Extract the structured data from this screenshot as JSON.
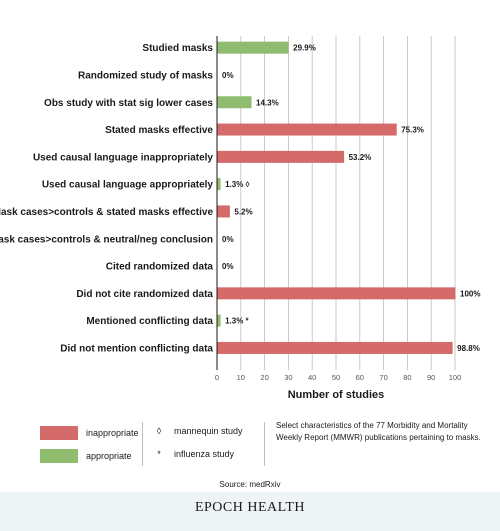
{
  "chart_data": {
    "type": "bar",
    "orientation": "horizontal",
    "categories": [
      "Studied masks",
      "Randomized study of masks",
      "Obs study with stat sig lower cases",
      "Stated masks effective",
      "Used causal language inappropriately",
      "Used causal language appropriately",
      "Mask cases>controls & stated masks effective",
      "Mask cases>controls & neutral/neg conclusion",
      "Cited randomized data",
      "Did not cite randomized data",
      "Mentioned conflicting data",
      "Did not mention conflicting data"
    ],
    "values": [
      29.9,
      0,
      14.3,
      75.3,
      53.2,
      1.3,
      5.2,
      0,
      0,
      100,
      1.3,
      98.8
    ],
    "value_labels": [
      "29.9%",
      "0%",
      "14.3%",
      "75.3%",
      "53.2%",
      "1.3%",
      "5.2%",
      "0%",
      "0%",
      "100%",
      "1.3%",
      "98.8%"
    ],
    "label_markers": [
      "",
      "",
      "",
      "",
      "",
      "◊",
      "",
      "",
      "",
      "",
      "*",
      ""
    ],
    "bar_classes": [
      "appropriate",
      "appropriate",
      "appropriate",
      "inappropriate",
      "inappropriate",
      "appropriate",
      "inappropriate",
      "inappropriate",
      "appropriate",
      "inappropriate",
      "appropriate",
      "inappropriate"
    ],
    "xlabel": "Number of studies",
    "xlim": [
      0,
      100
    ],
    "xticks": [
      0,
      10,
      20,
      30,
      40,
      50,
      60,
      70,
      80,
      90,
      100
    ],
    "grid": true,
    "colors": {
      "inappropriate": "#d46a6a",
      "appropriate": "#8fbc6e",
      "grid": "#bdbdbd"
    }
  },
  "legend": {
    "inappropriate": "inappropriate",
    "appropriate": "appropriate",
    "mannequin_symbol": "◊",
    "mannequin": "mannequin study",
    "influenza_symbol": "*",
    "influenza": "influenza study",
    "note": "Select characteristics of the 77 Morbidity and Mortality Weekly Report (MMWR) publications pertaining to masks."
  },
  "source": "Source: medRxiv",
  "brand": "EPOCH HEALTH"
}
